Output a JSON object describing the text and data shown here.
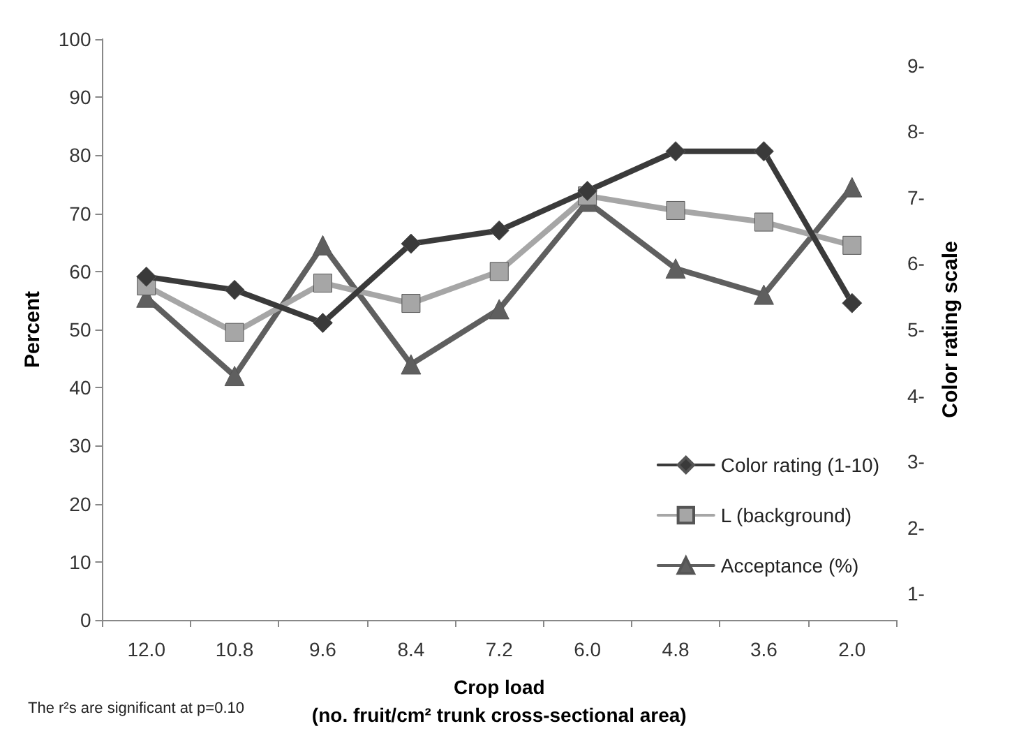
{
  "chart_data": {
    "type": "line",
    "xlabel": "Crop load\n(no. fruit/cm² trunk cross-sectional area)",
    "ylabel": "Percent",
    "y2label": "Color rating scale",
    "categories": [
      "12.0",
      "10.8",
      "9.6",
      "8.4",
      "7.2",
      "6.0",
      "4.8",
      "3.6",
      "2.0"
    ],
    "series": [
      {
        "name": "Color rating (1-10)",
        "color": "#3a3a3a",
        "marker": "diamond",
        "axis": "y2",
        "values": [
          5.8,
          5.6,
          5.1,
          6.3,
          6.5,
          7.1,
          7.7,
          7.7,
          5.4
        ]
      },
      {
        "name": "L (background)",
        "color": "#a6a6a6",
        "marker": "square",
        "values": [
          57.5,
          49.5,
          58,
          54.5,
          60,
          73,
          70.5,
          68.5,
          64.5
        ]
      },
      {
        "name": "Acceptance (%)",
        "color": "#5f5f5f",
        "marker": "triangle",
        "values": [
          55.5,
          42,
          64.5,
          44,
          53.5,
          72,
          60.5,
          56,
          74.5
        ]
      }
    ],
    "ylim": [
      0,
      100
    ],
    "yticks": [
      0,
      10,
      20,
      30,
      40,
      50,
      60,
      70,
      80,
      90,
      100
    ],
    "y2lim": [
      0.6,
      9.4
    ],
    "y2ticks": [
      {
        "value": 1,
        "label": "1-"
      },
      {
        "value": 2,
        "label": "2-"
      },
      {
        "value": 3,
        "label": "3-"
      },
      {
        "value": 4,
        "label": "4-"
      },
      {
        "value": 5,
        "label": "5-"
      },
      {
        "value": 6,
        "label": "6-"
      },
      {
        "value": 7,
        "label": "7-"
      },
      {
        "value": 8,
        "label": "8-"
      },
      {
        "value": 9,
        "label": "9-"
      }
    ],
    "grid": false,
    "legend": "bottom right",
    "line_style": "solid",
    "annotations": [
      "The r²s are significant at p=0.10"
    ]
  }
}
